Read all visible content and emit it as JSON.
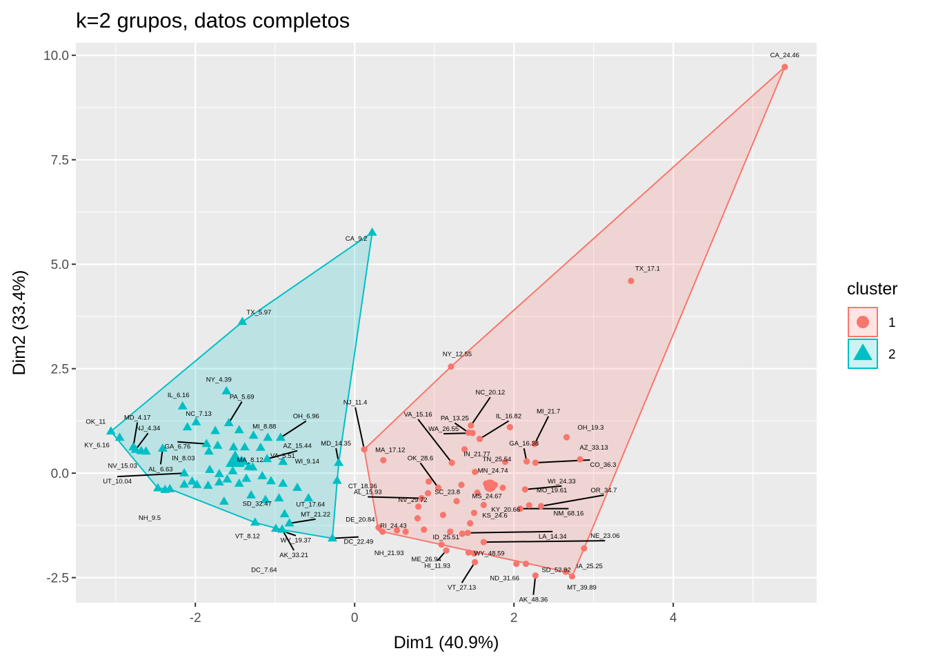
{
  "chart_data": {
    "type": "scatter",
    "title": "k=2 grupos, datos completos",
    "xlabel": "Dim1 (40.9%)",
    "ylabel": "Dim2 (33.4%)",
    "xlim": [
      -3.5,
      5.8
    ],
    "ylim": [
      -3.1,
      10.3
    ],
    "x_ticks": [
      -2,
      0,
      2,
      4
    ],
    "y_ticks": [
      -2.5,
      0.0,
      2.5,
      5.0,
      7.5,
      10.0
    ],
    "x_tick_labels": [
      "-2",
      "0",
      "2",
      "4"
    ],
    "y_tick_labels": [
      "-2.5",
      "0.0",
      "2.5",
      "5.0",
      "7.5",
      "10.0"
    ],
    "grid": true,
    "legend": {
      "title": "cluster",
      "position": "right",
      "entries": [
        {
          "label": "1",
          "color": "#F8766D",
          "shape": "circle"
        },
        {
          "label": "2",
          "color": "#00BFC4",
          "shape": "triangle"
        }
      ]
    },
    "series": [
      {
        "name": "1",
        "color": "#F8766D",
        "shape": "circle",
        "centroid": [
          1.7,
          -0.3
        ],
        "hull": [
          [
            5.4,
            9.72
          ],
          [
            2.88,
            -1.8
          ],
          [
            2.73,
            -2.47
          ],
          [
            2.65,
            -2.36
          ],
          [
            0.3,
            -1.38
          ],
          [
            0.29,
            -1.28
          ],
          [
            0.12,
            0.57
          ],
          [
            1.21,
            2.55
          ]
        ],
        "points": [
          {
            "label": "CA_24.46",
            "x": 5.4,
            "y": 9.72
          },
          {
            "label": "TX_17.1",
            "x": 3.47,
            "y": 4.6
          },
          {
            "label": "NY_12.55",
            "x": 1.21,
            "y": 2.55
          },
          {
            "label": "NC_20.12",
            "x": 1.46,
            "y": 1.14
          },
          {
            "label": "PA_13.25",
            "x": 1.43,
            "y": 0.97
          },
          {
            "label": "IL_16.82",
            "x": 1.57,
            "y": 0.82
          },
          {
            "label": "WA_26.55",
            "x": 1.48,
            "y": 0.96
          },
          {
            "label": "MI_21.7",
            "x": 2.26,
            "y": 0.7
          },
          {
            "label": "GA_16.38",
            "x": 2.16,
            "y": 0.28
          },
          {
            "label": "OH_19.3",
            "x": 2.66,
            "y": 0.86
          },
          {
            "label": "AZ_33.13",
            "x": 2.83,
            "y": 0.33
          },
          {
            "label": "CO_36.3",
            "x": 2.27,
            "y": 0.25
          },
          {
            "label": "NJ_11.4",
            "x": 0.12,
            "y": 0.57
          },
          {
            "label": "MA_17.12",
            "x": 0.36,
            "y": 0.31
          },
          {
            "label": "VA_15.16",
            "x": 1.22,
            "y": 0.25
          },
          {
            "label": "IN_21.77",
            "x": 1.38,
            "y": 0.57
          },
          {
            "label": "TN_25.54",
            "x": 1.89,
            "y": 0.27
          },
          {
            "label": "OK_28.6",
            "x": 1.05,
            "y": -0.35
          },
          {
            "label": "SC_23.8",
            "x": 0.93,
            "y": -0.2
          },
          {
            "label": "MN_24.74",
            "x": 1.51,
            "y": 0.03
          },
          {
            "label": "WI_24.33",
            "x": 2.14,
            "y": -0.39
          },
          {
            "label": "NV_29.72",
            "x": 0.92,
            "y": -0.48
          },
          {
            "label": "MS_24.67",
            "x": 1.54,
            "y": -0.47
          },
          {
            "label": "KY_20.66",
            "x": 1.62,
            "y": -0.76
          },
          {
            "label": "MO_19.61",
            "x": 2.19,
            "y": -0.77
          },
          {
            "label": "OR_34.7",
            "x": 2.34,
            "y": -0.79
          },
          {
            "label": "NM_68.16",
            "x": 2.08,
            "y": -0.85
          },
          {
            "label": "AL_15.93",
            "x": 0.84,
            "y": -0.6
          },
          {
            "label": "RI_24.43",
            "x": 0.79,
            "y": -1.08
          },
          {
            "label": "DE_20.84",
            "x": 1.11,
            "y": -1.0
          },
          {
            "label": "KS_24.6",
            "x": 1.5,
            "y": -0.95
          },
          {
            "label": "ID_25.51",
            "x": 0.87,
            "y": -1.35
          },
          {
            "label": "LA_14.34",
            "x": 1.42,
            "y": -1.43
          },
          {
            "label": "NE_23.06",
            "x": 1.62,
            "y": -1.65
          },
          {
            "label": "ME_26.94",
            "x": 1.09,
            "y": -1.71
          },
          {
            "label": "HI_11.93",
            "x": 1.15,
            "y": -1.85
          },
          {
            "label": "WY_48.59",
            "x": 1.5,
            "y": -1.92
          },
          {
            "label": "NH_21.93",
            "x": 0.64,
            "y": -1.4
          },
          {
            "label": "VT_27.13",
            "x": 1.51,
            "y": -2.13
          },
          {
            "label": "ND_31.66",
            "x": 2.03,
            "y": -2.17
          },
          {
            "label": "SD_52.92",
            "x": 2.15,
            "y": -2.17
          },
          {
            "label": "AK_48.36",
            "x": 2.27,
            "y": -2.45
          },
          {
            "label": "IA_25.25",
            "x": 2.88,
            "y": -1.8
          },
          {
            "label": "MT_39.89",
            "x": 2.73,
            "y": -2.47
          },
          {
            "label": "",
            "x": 0.3,
            "y": -1.3
          },
          {
            "label": "",
            "x": 0.35,
            "y": -1.4
          },
          {
            "label": "",
            "x": 0.53,
            "y": -1.37
          },
          {
            "label": "",
            "x": 0.8,
            "y": -0.8
          },
          {
            "label": "",
            "x": 1.2,
            "y": -1.4
          },
          {
            "label": "",
            "x": 1.35,
            "y": -1.45
          },
          {
            "label": "",
            "x": 1.43,
            "y": -1.9
          },
          {
            "label": "",
            "x": 1.65,
            "y": -0.25
          },
          {
            "label": "",
            "x": 1.76,
            "y": -0.28
          },
          {
            "label": "",
            "x": 1.34,
            "y": -0.28
          },
          {
            "label": "",
            "x": 1.28,
            "y": -0.67
          },
          {
            "label": "",
            "x": 1.45,
            "y": -1.2
          },
          {
            "label": "",
            "x": 1.95,
            "y": 1.1
          },
          {
            "label": "",
            "x": 2.65,
            "y": -2.36
          },
          {
            "label": "",
            "x": 1.86,
            "y": -0.35
          }
        ]
      },
      {
        "name": "2",
        "color": "#00BFC4",
        "shape": "triangle",
        "centroid": [
          -1.5,
          0.3
        ],
        "hull": [
          [
            0.22,
            5.76
          ],
          [
            -0.2,
            0.25
          ],
          [
            -0.28,
            -1.56
          ],
          [
            -0.92,
            -1.35
          ],
          [
            -1.25,
            -1.18
          ],
          [
            -2.32,
            -0.38
          ],
          [
            -2.47,
            -0.36
          ],
          [
            -3.06,
            1.0
          ],
          [
            -1.41,
            3.62
          ]
        ],
        "points": [
          {
            "label": "CA_9.2",
            "x": 0.22,
            "y": 5.76
          },
          {
            "label": "TX_5.97",
            "x": -1.41,
            "y": 3.62
          },
          {
            "label": "NY_4.39",
            "x": -1.61,
            "y": 1.96
          },
          {
            "label": "IL_6.16",
            "x": -2.16,
            "y": 1.6
          },
          {
            "label": "PA_5.69",
            "x": -1.58,
            "y": 1.2
          },
          {
            "label": "NC_7.13",
            "x": -1.75,
            "y": 1.01
          },
          {
            "label": "MI_8.88",
            "x": -1.09,
            "y": 0.85
          },
          {
            "label": "OH_6.96",
            "x": -0.93,
            "y": 0.85
          },
          {
            "label": "MD_4.17",
            "x": -2.78,
            "y": 0.62
          },
          {
            "label": "NJ_4.34",
            "x": -2.75,
            "y": 0.56
          },
          {
            "label": "GA_6.76",
            "x": -1.86,
            "y": 0.7
          },
          {
            "label": "OK_11",
            "x": -3.06,
            "y": 1.0
          },
          {
            "label": "KY_6.16",
            "x": -2.95,
            "y": 0.85
          },
          {
            "label": "IN_8.03",
            "x": -1.83,
            "y": 0.52
          },
          {
            "label": "VA_5.51",
            "x": -1.18,
            "y": 0.61
          },
          {
            "label": "AZ_15.44",
            "x": -1.1,
            "y": 0.34
          },
          {
            "label": "NV_15.03",
            "x": -2.62,
            "y": 0.52
          },
          {
            "label": "AL_6.63",
            "x": -2.41,
            "y": 0.59
          },
          {
            "label": "MA_8.12",
            "x": -1.39,
            "y": 0.27
          },
          {
            "label": "WI_9.14",
            "x": -0.9,
            "y": 0.27
          },
          {
            "label": "UT_10.04",
            "x": -2.14,
            "y": 0.0
          },
          {
            "label": "SD_32.47",
            "x": -1.45,
            "y": -0.25
          },
          {
            "label": "UT_17.64",
            "x": -0.9,
            "y": -0.25
          },
          {
            "label": "MD_14.35",
            "x": -0.2,
            "y": 0.25
          },
          {
            "label": "CT_18.36",
            "x": -0.22,
            "y": -0.18
          },
          {
            "label": "NH_9.5",
            "x": -2.47,
            "y": -0.36
          },
          {
            "label": "VT_8.12",
            "x": -1.64,
            "y": -0.68
          },
          {
            "label": "DC_7.64",
            "x": -1.25,
            "y": -1.18
          },
          {
            "label": "MT_21.22",
            "x": -0.82,
            "y": -1.2
          },
          {
            "label": "WY_19.37",
            "x": -0.99,
            "y": -1.33
          },
          {
            "label": "DC_22.49",
            "x": -0.28,
            "y": -1.56
          },
          {
            "label": "AK_33.21",
            "x": -0.91,
            "y": -1.35
          },
          {
            "label": "",
            "x": -2.32,
            "y": -0.38
          },
          {
            "label": "",
            "x": -2.14,
            "y": -0.27
          },
          {
            "label": "",
            "x": -2.04,
            "y": -0.2
          },
          {
            "label": "",
            "x": -1.98,
            "y": -0.28
          },
          {
            "label": "",
            "x": -1.84,
            "y": -0.3
          },
          {
            "label": "",
            "x": -1.7,
            "y": -0.22
          },
          {
            "label": "",
            "x": -1.6,
            "y": -0.15
          },
          {
            "label": "",
            "x": -1.53,
            "y": 0.05
          },
          {
            "label": "",
            "x": -1.48,
            "y": 0.28
          },
          {
            "label": "",
            "x": -1.42,
            "y": 0.3
          },
          {
            "label": "",
            "x": -1.33,
            "y": 0.15
          },
          {
            "label": "",
            "x": -1.28,
            "y": 0.14
          },
          {
            "label": "",
            "x": -1.16,
            "y": -0.07
          },
          {
            "label": "",
            "x": -1.05,
            "y": -0.19
          },
          {
            "label": "",
            "x": -0.95,
            "y": -0.6
          },
          {
            "label": "",
            "x": -0.88,
            "y": -0.98
          },
          {
            "label": "",
            "x": -0.58,
            "y": -0.6
          },
          {
            "label": "",
            "x": -0.72,
            "y": -0.35
          },
          {
            "label": "",
            "x": -1.27,
            "y": 0.9
          },
          {
            "label": "",
            "x": -1.45,
            "y": 1.03
          },
          {
            "label": "",
            "x": -1.99,
            "y": 1.22
          },
          {
            "label": "",
            "x": -2.1,
            "y": 1.1
          },
          {
            "label": "",
            "x": -2.38,
            "y": -0.4
          },
          {
            "label": "",
            "x": -2.68,
            "y": 0.53
          },
          {
            "label": "",
            "x": -1.72,
            "y": 0.66
          },
          {
            "label": "",
            "x": -1.52,
            "y": 0.62
          },
          {
            "label": "",
            "x": -1.38,
            "y": 0.62
          },
          {
            "label": "",
            "x": -1.3,
            "y": -0.53
          },
          {
            "label": "",
            "x": -1.12,
            "y": -0.64
          },
          {
            "label": "",
            "x": -1.36,
            "y": -0.13
          },
          {
            "label": "",
            "x": -1.82,
            "y": 0.08
          },
          {
            "label": "",
            "x": -1.7,
            "y": -0.02
          }
        ]
      }
    ]
  }
}
